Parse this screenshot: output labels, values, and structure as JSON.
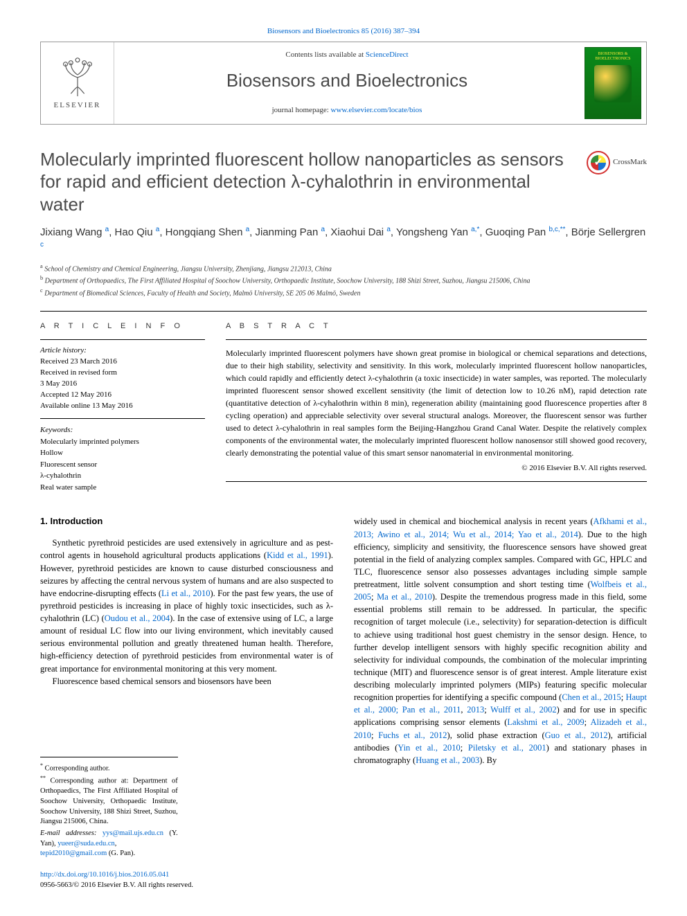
{
  "citation": {
    "text": "Biosensors and Bioelectronics 85 (2016) 387–394",
    "href": "#"
  },
  "header": {
    "contents_prefix": "Contents lists available at ",
    "contents_link": "ScienceDirect",
    "journal_name": "Biosensors and Bioelectronics",
    "homepage_prefix": "journal homepage: ",
    "homepage_link": "www.elsevier.com/locate/bios",
    "elsevier_word": "ELSEVIER",
    "cover_label": "BIOSENSORS & BIOELECTRONICS"
  },
  "title": "Molecularly imprinted fluorescent hollow nanoparticles as sensors for rapid and efficient detection λ-cyhalothrin in environmental water",
  "crossmark_label": "CrossMark",
  "authors_html": "Jixiang Wang <sup>a</sup>, Hao Qiu <sup>a</sup>, Hongqiang Shen <sup>a</sup>, Jianming Pan <sup>a</sup>, Xiaohui Dai <sup>a</sup>, Yongsheng Yan <sup>a,</sup><sup class='star'>*</sup>, Guoqing Pan <sup>b,c,</sup><sup class='star'>**</sup>, Börje Sellergren <sup>c</sup>",
  "affiliations": [
    {
      "mark": "a",
      "text": "School of Chemistry and Chemical Engineering, Jiangsu University, Zhenjiang, Jiangsu 212013, China"
    },
    {
      "mark": "b",
      "text": "Department of Orthopaedics, The First Affiliated Hospital of Soochow University, Orthopaedic Institute, Soochow University, 188 Shizi Street, Suzhou, Jiangsu 215006, China"
    },
    {
      "mark": "c",
      "text": "Department of Biomedical Sciences, Faculty of Health and Society, Malmö University, SE 205 06 Malmö, Sweden"
    }
  ],
  "article_info": {
    "heading": "A R T I C L E  I N F O",
    "history_label": "Article history:",
    "history": [
      "Received 23 March 2016",
      "Received in revised form",
      "3 May 2016",
      "Accepted 12 May 2016",
      "Available online 13 May 2016"
    ],
    "keywords_label": "Keywords:",
    "keywords": [
      "Molecularly imprinted polymers",
      "Hollow",
      "Fluorescent sensor",
      "λ-cyhalothrin",
      "Real water sample"
    ]
  },
  "abstract": {
    "heading": "A B S T R A C T",
    "text": "Molecularly imprinted fluorescent polymers have shown great promise in biological or chemical separations and detections, due to their high stability, selectivity and sensitivity. In this work, molecularly imprinted fluorescent hollow nanoparticles, which could rapidly and efficiently detect λ-cyhalothrin (a toxic insecticide) in water samples, was reported. The molecularly imprinted fluorescent sensor showed excellent sensitivity (the limit of detection low to 10.26 nM), rapid detection rate (quantitative detection of λ-cyhalothrin within 8 min), regeneration ability (maintaining good fluorescence properties after 8 cycling operation) and appreciable selectivity over several structural analogs. Moreover, the fluorescent sensor was further used to detect λ-cyhalothrin in real samples form the Beijing-Hangzhou Grand Canal Water. Despite the relatively complex components of the environmental water, the molecularly imprinted fluorescent hollow nanosensor still showed good recovery, clearly demonstrating the potential value of this smart sensor nanomaterial in environmental monitoring.",
    "copyright": "© 2016 Elsevier B.V. All rights reserved."
  },
  "body": {
    "section_heading": "1.  Introduction",
    "p1_pre": "Synthetic pyrethroid pesticides are used extensively in agriculture and as pest-control agents in household agricultural products applications (",
    "p1_ref1": "Kidd et al., 1991",
    "p1_mid1": "). However, pyrethroid pesticides are known to cause disturbed consciousness and seizures by affecting the central nervous system of humans and are also suspected to have endocrine-disrupting effects (",
    "p1_ref2": "Li et al., 2010",
    "p1_mid2": "). For the past few years, the use of pyrethroid pesticides is increasing in place of highly toxic insecticides, such as λ-cyhalothrin (LC) (",
    "p1_ref3": "Oudou et al., 2004",
    "p1_post": "). In the case of extensive using of LC, a large amount of residual LC flow into our living environment, which inevitably caused serious environmental pollution and greatly threatened human health. Therefore, high-efficiency detection of pyrethroid pesticides from environmental water is of great importance for environmental monitoring at this very moment.",
    "p2": "Fluorescence based chemical sensors and biosensors have been",
    "p3_pre": "widely used in chemical and biochemical analysis in recent years (",
    "p3_ref1": "Afkhami et al., 2013; Awino et al., 2014; Wu et al., 2014; Yao et al., 2014",
    "p3_mid1": "). Due to the high efficiency, simplicity and sensitivity, the fluorescence sensors have showed great potential in the field of analyzing complex samples. Compared with GC, HPLC and TLC, fluorescence sensor also possesses advantages including simple sample pretreatment, little solvent consumption and short testing time (",
    "p3_ref2": "Wolfbeis et al., 2005",
    "p3_sep2": "; ",
    "p3_ref3": "Ma et al., 2010",
    "p3_mid2": "). Despite the tremendous progress made in this field, some essential problems still remain to be addressed. In particular, the specific recognition of target molecule (i.e., selectivity) for separation-detection is difficult to achieve using traditional host guest chemistry in the sensor design. Hence, to further develop intelligent sensors with highly specific recognition ability and selectivity for individual compounds, the combination of the molecular imprinting technique (MIT) and fluorescence sensor is of great interest. Ample literature exist describing molecularly imprinted polymers (MIPs) featuring specific molecular recognition properties for identifying a specific compound (",
    "p3_ref4": "Chen et al., 2015",
    "p3_sep4": "; ",
    "p3_ref5": "Haupt et al., 2000; Pan et al., 2011",
    "p3_sep5": ", ",
    "p3_ref6": "2013",
    "p3_sep6": "; ",
    "p3_ref7": "Wulff et al., 2002",
    "p3_mid3": ") and for use in specific applications comprising sensor elements (",
    "p3_ref8": "Lakshmi et al., 2009",
    "p3_sep8": "; ",
    "p3_ref9": "Alizadeh et al., 2010",
    "p3_sep9": "; ",
    "p3_ref10": "Fuchs et al., 2012",
    "p3_mid4": "), solid phase extraction (",
    "p3_ref11": "Guo et al., 2012",
    "p3_mid5": "), artificial antibodies (",
    "p3_ref12": "Yin et al., 2010",
    "p3_sep12": "; ",
    "p3_ref13": "Piletsky et al., 2001",
    "p3_mid6": ") and stationary phases in chromatography (",
    "p3_ref14": "Huang et al., 2003",
    "p3_post": "). By"
  },
  "footnotes": {
    "c1_mark": "*",
    "c1_text": " Corresponding author.",
    "c2_mark": "**",
    "c2_text": " Corresponding author at: Department of Orthopaedics, The First Affiliated Hospital of Soochow University, Orthopaedic Institute, Soochow University, 188 Shizi Street, Suzhou, Jiangsu 215006, China.",
    "email_label": "E-mail addresses: ",
    "email1": "yys@mail.ujs.edu.cn",
    "email1_who": " (Y. Yan), ",
    "email2": "yueer@suda.edu.cn",
    "email2_sep": ", ",
    "email3": "tepid2010@gmail.com",
    "email3_who": " (G. Pan)."
  },
  "bottom": {
    "doi": "http://dx.doi.org/10.1016/j.bios.2016.05.041",
    "issn_line": "0956-5663/© 2016 Elsevier B.V. All rights reserved."
  },
  "colors": {
    "link": "#0066cc",
    "text": "#000000",
    "title_grey": "#4a4a4a",
    "cover_green_top": "#0a8a1a",
    "cover_green_bottom": "#0c6b12",
    "cover_yellow": "#ffeb3b"
  }
}
